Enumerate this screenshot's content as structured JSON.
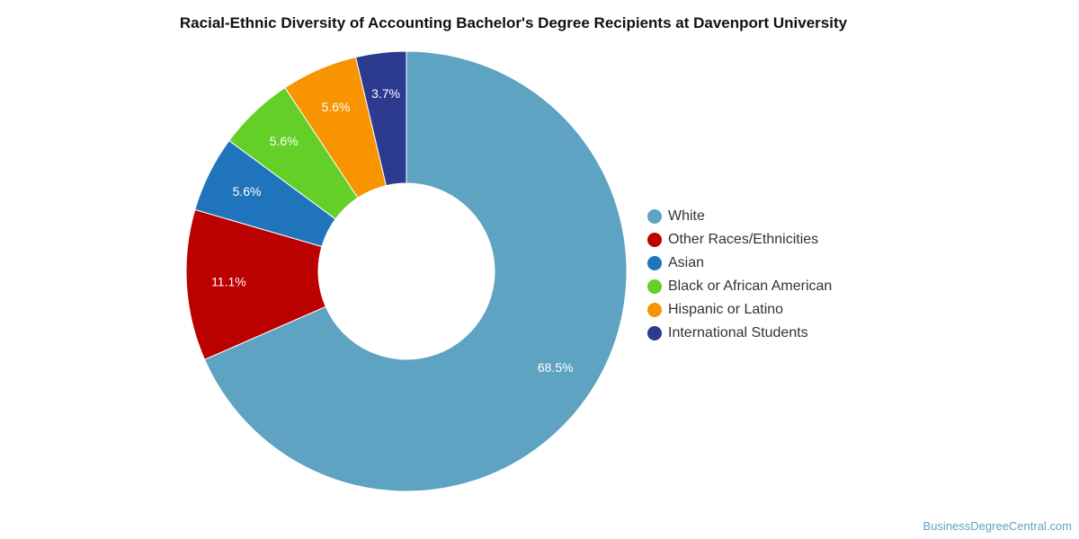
{
  "chart_data": {
    "type": "pie",
    "title": "Racial-Ethnic Diversity of Accounting Bachelor's Degree Recipients at Davenport University",
    "categories": [
      "White",
      "Other Races/Ethnicities",
      "Asian",
      "Black or African American",
      "Hispanic or Latino",
      "International Students"
    ],
    "values": [
      68.5,
      11.1,
      5.6,
      5.6,
      5.6,
      3.7
    ],
    "labels": [
      "68.5%",
      "11.1%",
      "5.6%",
      "5.6%",
      "5.6%",
      "3.7%"
    ],
    "colors": [
      "#5ea3c1",
      "#bb0000",
      "#1f74bb",
      "#63cf27",
      "#f79400",
      "#2c3a8f"
    ],
    "donut": true,
    "legend_position": "right"
  },
  "source": "BusinessDegreeCentral.com"
}
